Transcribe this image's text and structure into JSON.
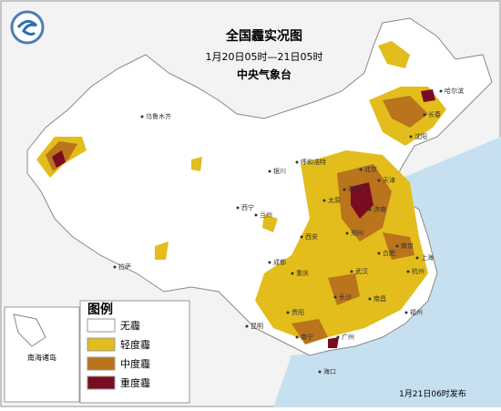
{
  "header": {
    "title": "全国霾实况图",
    "period": "1月20日05时—21日05时",
    "agency": "中央气象台"
  },
  "legend": {
    "title": "图例",
    "items": [
      "无霾",
      "轻度霾",
      "中度霾",
      "重度霾"
    ]
  },
  "inset": {
    "label": "南海诸岛"
  },
  "cities": [
    "乌鲁木齐",
    "哈尔滨",
    "长春",
    "沈阳",
    "呼和浩特",
    "北京",
    "天津",
    "石家庄",
    "太原",
    "银川",
    "兰州",
    "西宁",
    "西安",
    "郑州",
    "济南",
    "南京",
    "合肥",
    "上海",
    "杭州",
    "武汉",
    "长沙",
    "南昌",
    "福州",
    "成都",
    "重庆",
    "贵阳",
    "昆明",
    "南宁",
    "广州",
    "海口",
    "拉萨"
  ],
  "footer": {
    "issued": "1月21日06时发布"
  }
}
